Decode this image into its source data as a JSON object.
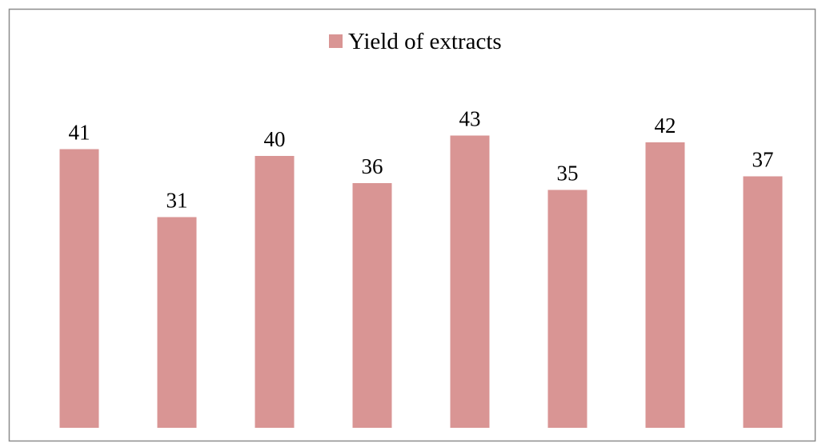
{
  "chart_data": {
    "type": "bar",
    "title": "",
    "xlabel": "",
    "ylabel": "",
    "ylim": [
      0,
      45
    ],
    "grid": false,
    "legend": {
      "position": "top-center",
      "entries": [
        "Yield of extracts"
      ]
    },
    "series": [
      {
        "name": "Yield of extracts",
        "color": "#d99594",
        "values": [
          41,
          31,
          40,
          36,
          43,
          35,
          42,
          37
        ]
      }
    ]
  }
}
